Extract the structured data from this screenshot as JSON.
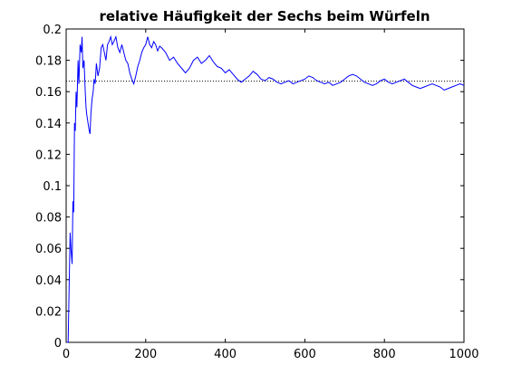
{
  "chart_data": {
    "type": "line",
    "title": "relative Häufigkeit der Sechs beim Würfeln",
    "xlabel": "",
    "ylabel": "",
    "xlim": [
      0,
      1000
    ],
    "ylim": [
      0,
      0.2
    ],
    "xticks": [
      "0",
      "200",
      "400",
      "600",
      "800",
      "1000"
    ],
    "yticks": [
      "0",
      "0.02",
      "0.04",
      "0.06",
      "0.08",
      "0.1",
      "0.12",
      "0.14",
      "0.16",
      "0.18",
      "0.2"
    ],
    "grid": false,
    "legend": "none",
    "reference_line": {
      "y": 0.1667,
      "style": "dotted",
      "color": "#000000"
    },
    "series": [
      {
        "color": "#0000ff",
        "x": [
          1,
          5,
          10,
          12,
          15,
          17,
          19,
          21,
          23,
          25,
          27,
          30,
          32,
          35,
          38,
          40,
          42,
          45,
          48,
          50,
          52,
          55,
          58,
          60,
          62,
          65,
          68,
          70,
          73,
          76,
          80,
          84,
          88,
          92,
          96,
          100,
          104,
          108,
          112,
          116,
          120,
          125,
          130,
          135,
          140,
          145,
          150,
          155,
          160,
          165,
          170,
          175,
          180,
          185,
          190,
          195,
          200,
          205,
          210,
          215,
          220,
          225,
          230,
          235,
          240,
          250,
          260,
          270,
          280,
          290,
          300,
          310,
          320,
          330,
          340,
          350,
          360,
          370,
          380,
          390,
          400,
          410,
          420,
          430,
          440,
          450,
          460,
          470,
          480,
          490,
          500,
          510,
          520,
          530,
          540,
          550,
          560,
          570,
          580,
          590,
          600,
          610,
          620,
          630,
          640,
          650,
          660,
          670,
          680,
          690,
          700,
          710,
          720,
          730,
          740,
          750,
          760,
          770,
          780,
          790,
          800,
          810,
          820,
          830,
          840,
          850,
          860,
          870,
          880,
          890,
          900,
          910,
          920,
          930,
          940,
          950,
          960,
          970,
          980,
          990,
          1000
        ],
        "y": [
          0,
          0,
          0.07,
          0.06,
          0.05,
          0.09,
          0.083,
          0.14,
          0.135,
          0.16,
          0.15,
          0.18,
          0.165,
          0.19,
          0.185,
          0.195,
          0.175,
          0.18,
          0.16,
          0.15,
          0.145,
          0.14,
          0.135,
          0.133,
          0.145,
          0.155,
          0.16,
          0.168,
          0.165,
          0.178,
          0.17,
          0.175,
          0.188,
          0.19,
          0.185,
          0.18,
          0.19,
          0.192,
          0.195,
          0.19,
          0.192,
          0.195,
          0.188,
          0.185,
          0.19,
          0.185,
          0.18,
          0.178,
          0.172,
          0.168,
          0.165,
          0.17,
          0.176,
          0.18,
          0.185,
          0.188,
          0.19,
          0.195,
          0.19,
          0.188,
          0.192,
          0.19,
          0.186,
          0.189,
          0.188,
          0.185,
          0.18,
          0.182,
          0.178,
          0.175,
          0.172,
          0.175,
          0.18,
          0.182,
          0.178,
          0.18,
          0.183,
          0.179,
          0.176,
          0.175,
          0.172,
          0.174,
          0.171,
          0.168,
          0.166,
          0.168,
          0.17,
          0.173,
          0.171,
          0.168,
          0.167,
          0.169,
          0.168,
          0.166,
          0.165,
          0.166,
          0.167,
          0.165,
          0.166,
          0.167,
          0.168,
          0.17,
          0.169,
          0.167,
          0.166,
          0.165,
          0.166,
          0.164,
          0.165,
          0.166,
          0.168,
          0.17,
          0.171,
          0.17,
          0.168,
          0.166,
          0.165,
          0.164,
          0.165,
          0.167,
          0.168,
          0.166,
          0.165,
          0.166,
          0.167,
          0.168,
          0.166,
          0.164,
          0.163,
          0.162,
          0.163,
          0.164,
          0.165,
          0.164,
          0.163,
          0.161,
          0.162,
          0.163,
          0.164,
          0.165,
          0.164
        ]
      }
    ]
  }
}
